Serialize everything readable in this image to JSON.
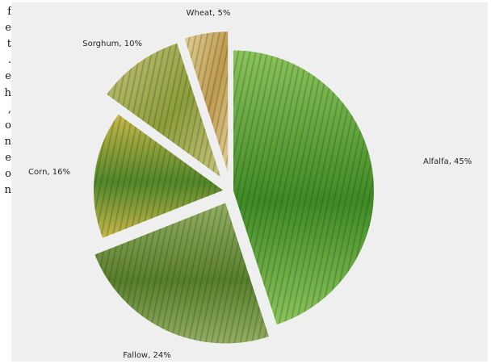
{
  "intro_text_fragment": [
    "f",
    "e",
    "t",
    ".",
    "e",
    "h",
    ",",
    "o",
    "n",
    "e",
    "o",
    "n"
  ],
  "chart_data": {
    "type": "pie",
    "title": "",
    "exploded": true,
    "slice_fill": "crop photographs",
    "labels_outside": true,
    "slices": [
      {
        "label": "Alfalfa",
        "value": 45,
        "label_text": "Alfalfa, 45%",
        "color": "#3f8a25",
        "color_light": "#8cc35c"
      },
      {
        "label": "Fallow",
        "value": 24,
        "label_text": "Fallow, 24%",
        "color": "#587e2c",
        "color_light": "#94ad62"
      },
      {
        "label": "Corn",
        "value": 16,
        "label_text": "Corn, 16%",
        "color": "#52872a",
        "color_light": "#c9b54a"
      },
      {
        "label": "Sorghum",
        "value": 10,
        "label_text": "Sorghum, 10%",
        "color": "#8e9d3b",
        "color_light": "#c7c27d"
      },
      {
        "label": "Wheat",
        "value": 5,
        "label_text": "Wheat, 5%",
        "color": "#c19a50",
        "color_light": "#e3cf98"
      }
    ]
  }
}
